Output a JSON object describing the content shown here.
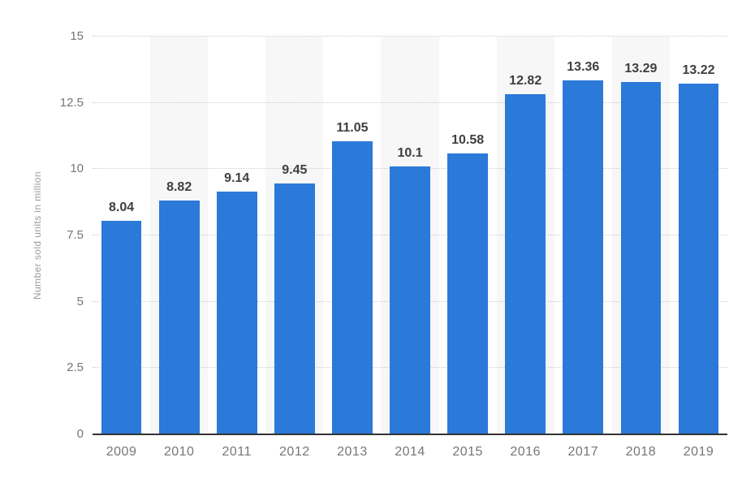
{
  "chart_data": {
    "type": "bar",
    "categories": [
      "2009",
      "2010",
      "2011",
      "2012",
      "2013",
      "2014",
      "2015",
      "2016",
      "2017",
      "2018",
      "2019"
    ],
    "values": [
      8.04,
      8.82,
      9.14,
      9.45,
      11.05,
      10.1,
      10.58,
      12.82,
      13.36,
      13.29,
      13.22
    ],
    "value_labels": [
      "8.04",
      "8.82",
      "9.14",
      "9.45",
      "11.05",
      "10.1",
      "10.58",
      "12.82",
      "13.36",
      "13.29",
      "13.22"
    ],
    "title": "",
    "xlabel": "",
    "ylabel": "Number sold units in million",
    "ylim": [
      0,
      15
    ],
    "yticks": [
      0,
      2.5,
      5,
      7.5,
      10,
      12.5,
      15
    ],
    "ytick_labels": [
      "0",
      "2.5",
      "5",
      "7.5",
      "10",
      "12.5",
      "15"
    ],
    "grid": "horizontal-dotted",
    "legend": "none",
    "striped_category_indexes": [
      1,
      3,
      5,
      7,
      9
    ]
  },
  "colors": {
    "bar": "#2b79d8",
    "stripe": "#f7f7f7",
    "gridline": "#cccccc",
    "axis_line": "#333333",
    "tick_label": "#767676",
    "value_label": "#3f3f3f",
    "axis_title": "#9b9b9b",
    "background": "#ffffff"
  }
}
